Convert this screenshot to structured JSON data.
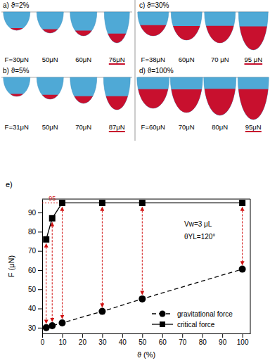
{
  "panels": [
    {
      "label": "a) ϑ=2%",
      "forces": [
        "F=30μN",
        "50μN",
        "60μN",
        "76μN"
      ]
    },
    {
      "label": "b) ϑ=5%",
      "forces": [
        "F=31μN",
        "50μN",
        "70μN",
        "87μN"
      ]
    },
    {
      "label": "c) ϑ=30%",
      "forces": [
        "F=38μN",
        "60μN",
        "70 μN",
        "95 μN"
      ]
    },
    {
      "label": "d) ϑ=100%",
      "forces": [
        "F=60μN",
        "70μN",
        "80μN",
        "95μN"
      ]
    }
  ],
  "chart_data": {
    "type": "line",
    "title": "e)",
    "x_label": "ϑ (%)",
    "y_label": "F (μN)",
    "x": [
      2,
      5,
      10,
      30,
      50,
      100
    ],
    "series": [
      {
        "name": "gravitational force",
        "color": "#000000",
        "marker": "circle",
        "line_style": "dashed",
        "values": [
          30,
          31,
          32.5,
          38.5,
          45,
          60.5
        ]
      },
      {
        "name": "critical force",
        "color": "#000000",
        "marker": "square",
        "line_style": "solid",
        "values": [
          76,
          87,
          95,
          95,
          95,
          95
        ]
      }
    ],
    "xlim": [
      0,
      104
    ],
    "xticks": [
      0,
      10,
      20,
      30,
      40,
      50,
      60,
      70,
      80,
      90,
      100
    ],
    "ylim": [
      27,
      97
    ],
    "yticks": [
      30,
      40,
      50,
      60,
      70,
      80,
      90
    ],
    "legend": "lower right",
    "annotations": [
      {
        "text": "95",
        "x": 10,
        "y": 95
      },
      {
        "text": "Vw=3 μL"
      },
      {
        "text": "θYL=120°"
      }
    ]
  }
}
